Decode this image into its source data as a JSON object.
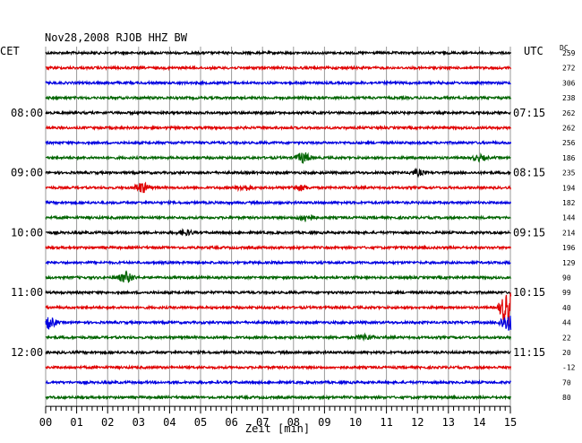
{
  "chart_data": {
    "type": "line",
    "title": "Nov28,2008  RJOB HHZ BW",
    "left_axis_title": "CET",
    "right_axis_title": "UTC",
    "dc_header": "DC",
    "xlabel": "Zeit [min]",
    "xlim": [
      0,
      15
    ],
    "x_ticks": [
      "00",
      "01",
      "02",
      "03",
      "04",
      "05",
      "06",
      "07",
      "08",
      "09",
      "10",
      "11",
      "12",
      "13",
      "14",
      "15"
    ],
    "trace_colors": [
      "#000000",
      "#e00000",
      "#0000e0",
      "#006400"
    ],
    "grid": true,
    "left_hour_labels": [
      {
        "trace": 4,
        "label": "08:00"
      },
      {
        "trace": 8,
        "label": "09:00"
      },
      {
        "trace": 12,
        "label": "10:00"
      },
      {
        "trace": 16,
        "label": "11:00"
      },
      {
        "trace": 20,
        "label": "12:00"
      }
    ],
    "right_hour_labels": [
      {
        "trace": 4,
        "label": "07:15"
      },
      {
        "trace": 8,
        "label": "08:15"
      },
      {
        "trace": 12,
        "label": "09:15"
      },
      {
        "trace": 16,
        "label": "10:15"
      },
      {
        "trace": 20,
        "label": "11:15"
      }
    ],
    "dc_offsets": [
      "259",
      "272",
      "306",
      "238",
      "262",
      "262",
      "256",
      "186",
      "235",
      "194",
      "182",
      "144",
      "214",
      "196",
      "129",
      "90",
      "99",
      "40",
      "44",
      "22",
      "20",
      "-12",
      "70",
      "80"
    ],
    "events": [
      {
        "trace": 7,
        "minute": 8.3,
        "amplitude": 6
      },
      {
        "trace": 7,
        "minute": 14.0,
        "amplitude": 3
      },
      {
        "trace": 8,
        "minute": 12.0,
        "amplitude": 3
      },
      {
        "trace": 9,
        "minute": 3.1,
        "amplitude": 6
      },
      {
        "trace": 9,
        "minute": 6.4,
        "amplitude": 3
      },
      {
        "trace": 9,
        "minute": 8.2,
        "amplitude": 3
      },
      {
        "trace": 11,
        "minute": 8.4,
        "amplitude": 4
      },
      {
        "trace": 12,
        "minute": 4.5,
        "amplitude": 3
      },
      {
        "trace": 15,
        "minute": 2.6,
        "amplitude": 6
      },
      {
        "trace": 17,
        "minute": 14.9,
        "amplitude": 22
      },
      {
        "trace": 18,
        "minute": 0.1,
        "amplitude": 6
      },
      {
        "trace": 18,
        "minute": 14.9,
        "amplitude": 10
      },
      {
        "trace": 19,
        "minute": 10.3,
        "amplitude": 3
      }
    ]
  }
}
